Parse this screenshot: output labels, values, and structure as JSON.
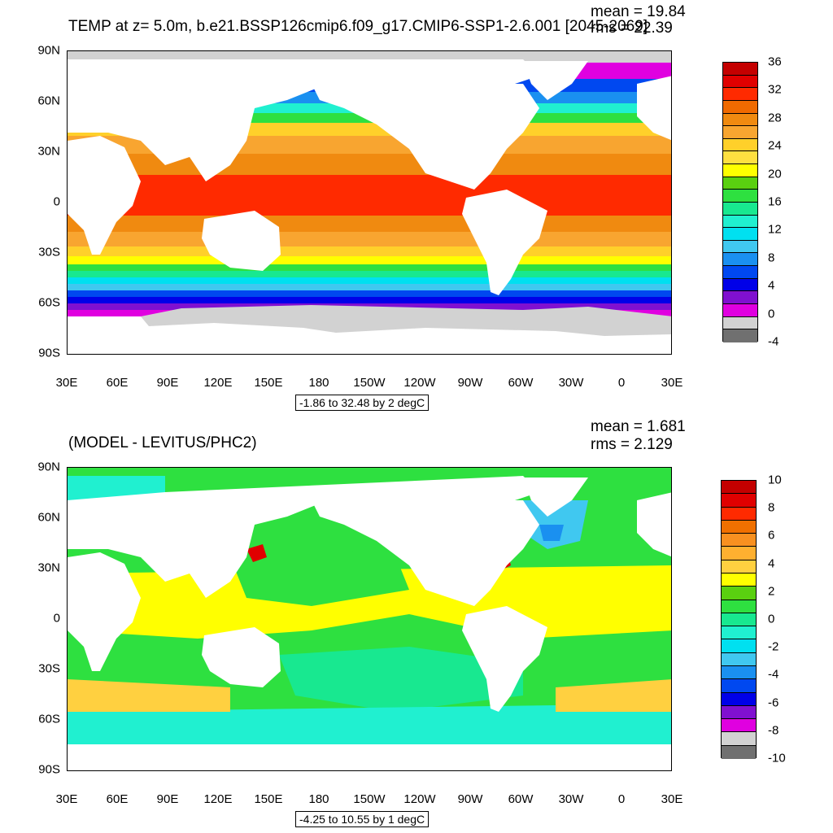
{
  "top": {
    "title": "TEMP at z=   5.0m, b.e21.BSSP126cmip6.f09_g17.CMIP6-SSP1-2.6.001 [2045-2069]",
    "mean": "mean = 19.84",
    "rms": "rms = 22.39",
    "range": "-1.86 to 32.48 by 2 degC",
    "colorbar_labels": [
      "36",
      "32",
      "28",
      "24",
      "20",
      "16",
      "12",
      "8",
      "4",
      "0",
      "-4"
    ],
    "colorbar_colors": [
      "#c40000",
      "#e00000",
      "#ff2a00",
      "#f06a00",
      "#f08a10",
      "#f8a530",
      "#ffd02a",
      "#ffe040",
      "#ffff00",
      "#5ad010",
      "#2ee040",
      "#18e890",
      "#20f0d0",
      "#00e0f0",
      "#40c8f0",
      "#1a90f0",
      "#0048f0",
      "#0000e8",
      "#8010d0",
      "#e000e0",
      "#d2d2d2",
      "#707070"
    ]
  },
  "bottom": {
    "title": "(MODEL - LEVITUS/PHC2)",
    "mean": "mean = 1.681",
    "rms": "rms = 2.129",
    "range": "-4.25 to 10.55 by 1 degC",
    "colorbar_labels": [
      "10",
      "8",
      "6",
      "4",
      "2",
      "0",
      "-2",
      "-4",
      "-6",
      "-8",
      "-10"
    ],
    "colorbar_colors": [
      "#c40000",
      "#e00000",
      "#ff2a00",
      "#f07000",
      "#f89020",
      "#ffb030",
      "#ffd040",
      "#ffff00",
      "#5ad010",
      "#2ee040",
      "#18e890",
      "#20f0d0",
      "#00e0f0",
      "#40c8f0",
      "#1a90f0",
      "#0048f0",
      "#0000e8",
      "#8010d0",
      "#e000e0",
      "#d2d2d2",
      "#707070"
    ]
  },
  "axes": {
    "lat_labels": [
      "90N",
      "60N",
      "30N",
      "0",
      "30S",
      "60S",
      "90S"
    ],
    "lon_labels": [
      "30E",
      "60E",
      "90E",
      "120E",
      "150E",
      "180",
      "150W",
      "120W",
      "90W",
      "60W",
      "30W",
      "0",
      "30E"
    ]
  }
}
